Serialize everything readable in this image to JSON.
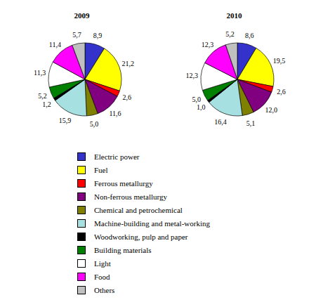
{
  "chart_data": [
    {
      "type": "pie",
      "title": "2009",
      "categories": [
        "Electric power",
        "Fuel",
        "Ferrous metallurgy",
        "Non-ferrous metallurgy",
        "Chemical and petrochemical",
        "Machine-building and metal-working",
        "Woodworking, pulp and paper",
        "Building materials",
        "Light",
        "Food",
        "Others"
      ],
      "values": [
        8.9,
        21.2,
        2.6,
        11.6,
        5.0,
        15.9,
        1.2,
        5.2,
        11.3,
        11.4,
        5.7
      ],
      "value_labels": [
        "8,9",
        "21,2",
        "2,6",
        "11,6",
        "5,0",
        "15,9",
        "1,2",
        "5,2",
        "11,3",
        "11,4",
        "5,7"
      ],
      "colors": [
        "#3333cc",
        "#ffff00",
        "#ff0000",
        "#800080",
        "#808000",
        "#a6e0e0",
        "#000000",
        "#008000",
        "#ffffff",
        "#ff00ff",
        "#c0c0c0"
      ],
      "data_labels": true,
      "legend": "bottom"
    },
    {
      "type": "pie",
      "title": "2010",
      "categories": [
        "Electric power",
        "Fuel",
        "Ferrous metallurgy",
        "Non-ferrous metallurgy",
        "Chemical and petrochemical",
        "Machine-building and metal-working",
        "Woodworking, pulp and paper",
        "Building materials",
        "Light",
        "Food",
        "Others"
      ],
      "values": [
        8.6,
        19.5,
        2.6,
        12.0,
        5.1,
        16.4,
        1.0,
        5.0,
        12.3,
        12.3,
        5.2
      ],
      "value_labels": [
        "8,6",
        "19,5",
        "2,6",
        "12,0",
        "5,1",
        "16,4",
        "1,0",
        "5,0",
        "12,3",
        "12,3",
        "5,2"
      ],
      "colors": [
        "#3333cc",
        "#ffff00",
        "#ff0000",
        "#800080",
        "#808000",
        "#a6e0e0",
        "#000000",
        "#008000",
        "#ffffff",
        "#ff00ff",
        "#c0c0c0"
      ],
      "data_labels": true,
      "legend": "bottom"
    }
  ]
}
